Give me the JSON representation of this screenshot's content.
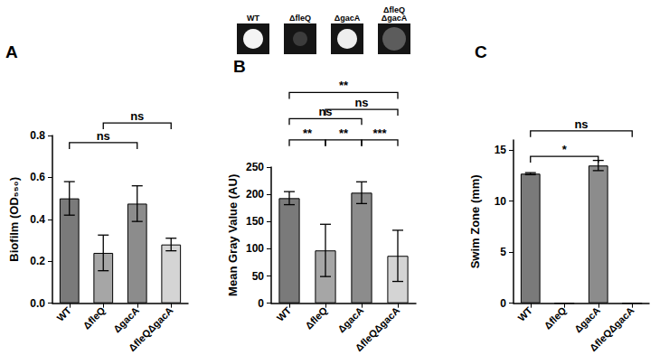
{
  "chart_data": [
    {
      "type": "bar",
      "title": "A",
      "ylabel": "Biofilm (OD₅₅₀)",
      "categories": [
        "WT",
        "ΔfleQ",
        "ΔgacA",
        "ΔfleQΔgacA"
      ],
      "values": [
        0.5,
        0.24,
        0.475,
        0.28
      ],
      "errors": [
        0.08,
        0.085,
        0.085,
        0.03
      ],
      "colors": [
        "#7a7a7a",
        "#a6a6a6",
        "#8c8c8c",
        "#d4d4d4"
      ],
      "ylim": [
        0,
        0.8
      ],
      "yticks": [
        {
          "value": 0,
          "label": "0.0"
        },
        0.2,
        0.4,
        0.6,
        0.8
      ],
      "grid": false,
      "comparisons": [
        {
          "from": "WT",
          "to": "ΔgacA",
          "y": 0.766,
          "label": "ns"
        },
        {
          "from": "ΔfleQ",
          "to": "ΔfleQΔgacA",
          "y": 0.86,
          "label": "ns"
        }
      ]
    },
    {
      "type": "bar",
      "title": "B",
      "ylabel": "Mean Gray Value (AU)",
      "categories": [
        "WT",
        "ΔfleQ",
        "ΔgacA",
        "ΔfleQΔgacA"
      ],
      "values": [
        193,
        97,
        203,
        87
      ],
      "errors": [
        12,
        48,
        20,
        47
      ],
      "colors": [
        "#7a7a7a",
        "#a6a6a6",
        "#8c8c8c",
        "#d4d4d4"
      ],
      "ylim": [
        0,
        250
      ],
      "yticks": [
        0,
        50,
        100,
        150,
        200,
        250
      ],
      "grid": false,
      "image_labels": [
        "WT",
        "ΔfleQ",
        "ΔgacA",
        "ΔfleQ\nΔgacA"
      ],
      "comparisons": [
        {
          "from": "WT",
          "to": "ΔfleQ",
          "y": 300,
          "label": "**"
        },
        {
          "from": "ΔfleQ",
          "to": "ΔgacA",
          "y": 300,
          "label": "**"
        },
        {
          "from": "ΔgacA",
          "to": "ΔfleQΔgacA",
          "y": 300,
          "label": "***"
        },
        {
          "from": "WT",
          "to": "ΔgacA",
          "y": 339,
          "label": "ns"
        },
        {
          "from": "ΔfleQ",
          "to": "ΔfleQΔgacA",
          "y": 356,
          "label": "ns"
        },
        {
          "from": "WT",
          "to": "ΔfleQΔgacA",
          "y": 387,
          "label": "**"
        }
      ]
    },
    {
      "type": "bar",
      "title": "C",
      "ylabel": "Swim Zone (mm)",
      "categories": [
        "WT",
        "ΔfleQ",
        "ΔgacA",
        "ΔfleQΔgacA"
      ],
      "values": [
        12.7,
        0,
        13.5,
        0
      ],
      "errors": [
        0.1,
        0,
        0.5,
        0
      ],
      "colors": [
        "#7a7a7a",
        "#a6a6a6",
        "#8c8c8c",
        "#d4d4d4"
      ],
      "ylim": [
        0,
        16
      ],
      "yticks": [
        0,
        5,
        10,
        15
      ],
      "grid": false,
      "comparisons": [
        {
          "from": "WT",
          "to": "ΔgacA",
          "y": 14.4,
          "label": "*"
        },
        {
          "from": "WT",
          "to": "ΔfleQΔgacA",
          "y": 16.9,
          "label": "ns"
        }
      ]
    }
  ]
}
